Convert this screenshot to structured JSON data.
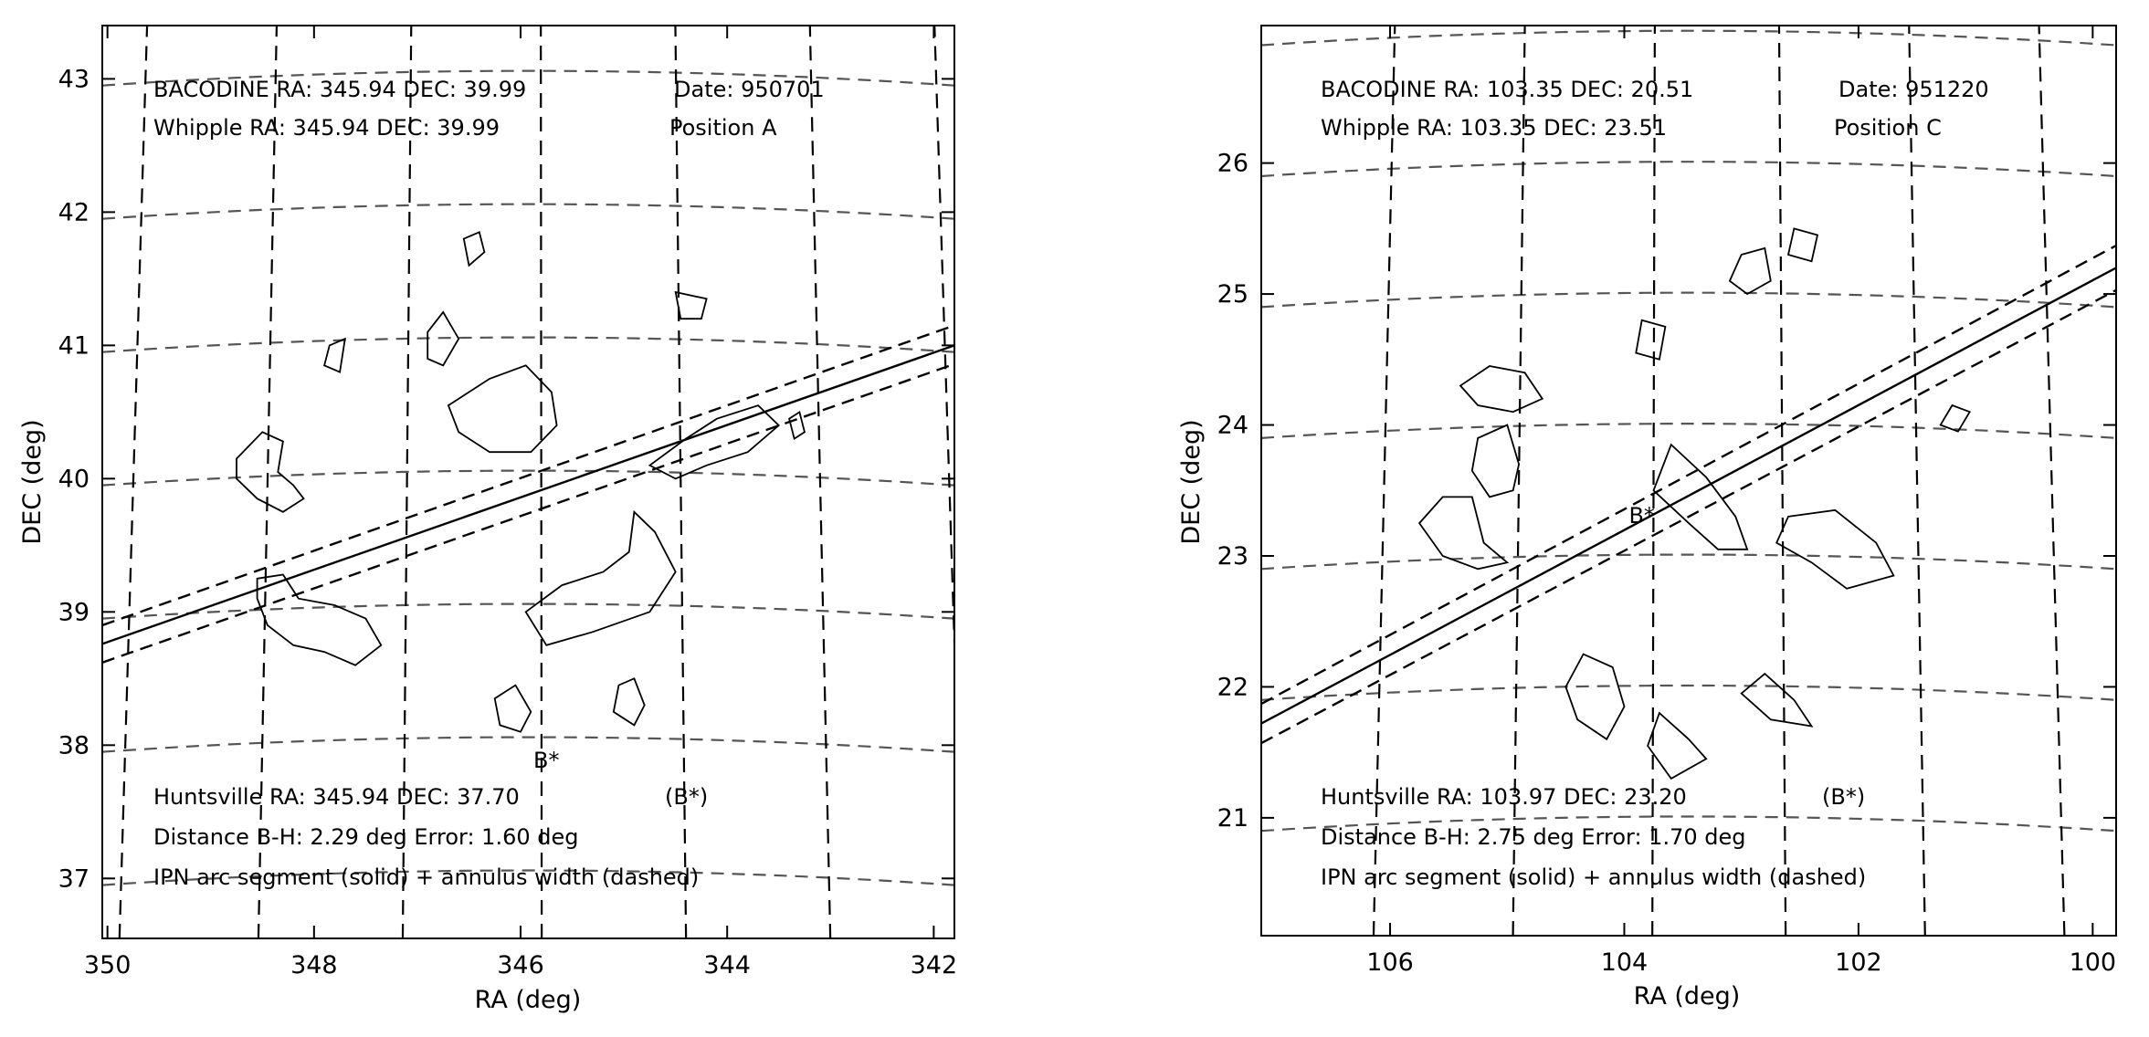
{
  "chart_data": [
    {
      "type": "contour",
      "xlabel": "RA (deg)",
      "ylabel": "DEC (deg)",
      "x_reversed": true,
      "xlim": [
        350.05,
        341.8
      ],
      "ylim": [
        36.55,
        43.4
      ],
      "xticks": [
        350,
        348,
        346,
        344,
        342
      ],
      "yticks": [
        37,
        38,
        39,
        40,
        41,
        42,
        43
      ],
      "grid": "curved dashed RA/DEC coordinate grid",
      "grid_ra": [
        349.75,
        348.45,
        347.1,
        345.8,
        344.45,
        343.1,
        341.85
      ],
      "grid_dec": [
        37.0,
        38.0,
        39.0,
        40.0,
        41.0,
        42.0,
        43.0
      ],
      "annotations": {
        "top_line_1": "BACODINE RA: 345.94 DEC: 39.99",
        "top_date": "Date: 950701",
        "top_line_2": "Whipple RA: 345.94 DEC: 39.99",
        "top_position": "Position A",
        "bottom_line_1": "Huntsville RA: 345.94 DEC: 37.70",
        "bottom_marker_legend": "(B*)",
        "bottom_line_2": "Distance B-H: 2.29 deg Error: 1.60 deg",
        "bottom_line_3": "IPN arc segment (solid) + annulus width (dashed)"
      },
      "marker": {
        "label": "B*",
        "ra": 345.75,
        "dec": 37.83
      },
      "ipn_arc": {
        "solid": [
          [
            350.05,
            38.76
          ],
          [
            341.8,
            41.0
          ]
        ],
        "dashed_upper": [
          [
            350.05,
            38.9
          ],
          [
            341.8,
            41.15
          ]
        ],
        "dashed_lower": [
          [
            350.05,
            38.62
          ],
          [
            341.8,
            40.86
          ]
        ]
      },
      "contours": [
        [
          [
            348.75,
            40.15
          ],
          [
            348.5,
            40.35
          ],
          [
            348.3,
            40.28
          ],
          [
            348.35,
            40.05
          ],
          [
            348.2,
            39.95
          ],
          [
            348.1,
            39.85
          ],
          [
            348.3,
            39.75
          ],
          [
            348.55,
            39.85
          ],
          [
            348.75,
            40.0
          ]
        ],
        [
          [
            348.55,
            39.25
          ],
          [
            348.3,
            39.28
          ],
          [
            348.15,
            39.1
          ],
          [
            347.8,
            39.05
          ],
          [
            347.5,
            38.95
          ],
          [
            347.35,
            38.75
          ],
          [
            347.6,
            38.6
          ],
          [
            347.9,
            38.7
          ],
          [
            348.2,
            38.75
          ],
          [
            348.45,
            38.9
          ],
          [
            348.55,
            39.1
          ]
        ],
        [
          [
            346.7,
            40.55
          ],
          [
            346.3,
            40.75
          ],
          [
            345.95,
            40.85
          ],
          [
            345.7,
            40.65
          ],
          [
            345.65,
            40.4
          ],
          [
            345.9,
            40.2
          ],
          [
            346.3,
            40.2
          ],
          [
            346.6,
            40.35
          ]
        ],
        [
          [
            346.9,
            41.1
          ],
          [
            346.75,
            41.25
          ],
          [
            346.6,
            41.05
          ],
          [
            346.75,
            40.85
          ],
          [
            346.9,
            40.9
          ]
        ],
        [
          [
            346.55,
            41.8
          ],
          [
            346.4,
            41.85
          ],
          [
            346.35,
            41.7
          ],
          [
            346.5,
            41.6
          ]
        ],
        [
          [
            344.95,
            39.45
          ],
          [
            344.9,
            39.75
          ],
          [
            344.7,
            39.6
          ],
          [
            344.5,
            39.3
          ],
          [
            344.75,
            39.0
          ],
          [
            345.3,
            38.85
          ],
          [
            345.75,
            38.75
          ],
          [
            345.95,
            39.0
          ],
          [
            345.6,
            39.2
          ],
          [
            345.2,
            39.3
          ]
        ],
        [
          [
            344.9,
            38.5
          ],
          [
            344.8,
            38.3
          ],
          [
            344.9,
            38.15
          ],
          [
            345.1,
            38.25
          ],
          [
            345.05,
            38.45
          ]
        ],
        [
          [
            346.25,
            38.35
          ],
          [
            346.05,
            38.45
          ],
          [
            345.9,
            38.25
          ],
          [
            346.0,
            38.1
          ],
          [
            346.2,
            38.15
          ]
        ],
        [
          [
            344.75,
            40.1
          ],
          [
            344.4,
            40.3
          ],
          [
            344.1,
            40.45
          ],
          [
            343.7,
            40.55
          ],
          [
            343.5,
            40.4
          ],
          [
            343.8,
            40.2
          ],
          [
            344.2,
            40.1
          ],
          [
            344.5,
            40.0
          ]
        ],
        [
          [
            344.5,
            41.4
          ],
          [
            344.2,
            41.35
          ],
          [
            344.25,
            41.2
          ],
          [
            344.45,
            41.2
          ]
        ],
        [
          [
            347.85,
            41.0
          ],
          [
            347.7,
            41.05
          ],
          [
            347.75,
            40.8
          ],
          [
            347.9,
            40.85
          ]
        ],
        [
          [
            343.4,
            40.45
          ],
          [
            343.3,
            40.5
          ],
          [
            343.25,
            40.35
          ],
          [
            343.35,
            40.3
          ]
        ]
      ]
    },
    {
      "type": "contour",
      "xlabel": "RA (deg)",
      "ylabel": "DEC (deg)",
      "x_reversed": true,
      "xlim": [
        107.1,
        99.8
      ],
      "ylim": [
        20.1,
        27.05
      ],
      "xticks": [
        106,
        104,
        102,
        100
      ],
      "yticks": [
        21,
        22,
        23,
        24,
        25,
        26
      ],
      "grid": "curved dashed RA/DEC coordinate grid",
      "grid_ra": [
        106.05,
        104.9,
        103.75,
        102.65,
        101.5,
        100.35
      ],
      "grid_dec": [
        20.95,
        21.95,
        22.95,
        23.95,
        24.95,
        25.95,
        26.95
      ],
      "annotations": {
        "top_line_1": "BACODINE RA: 103.35 DEC: 20.51",
        "top_date": "Date: 951220",
        "top_line_2": "Whipple RA: 103.35 DEC: 23.51",
        "top_position": "Position C",
        "bottom_line_1": "Huntsville RA: 103.97 DEC: 23.20",
        "bottom_marker_legend": "(B*)",
        "bottom_line_2": "Distance B-H: 2.75 deg Error: 1.70 deg",
        "bottom_line_3": "IPN arc segment (solid) + annulus width (dashed)"
      },
      "marker": {
        "label": "B*",
        "ra": 103.85,
        "dec": 23.25
      },
      "ipn_arc": {
        "solid": [
          [
            107.1,
            21.72
          ],
          [
            99.8,
            25.2
          ]
        ],
        "dashed_upper": [
          [
            107.1,
            21.87
          ],
          [
            99.8,
            25.37
          ]
        ],
        "dashed_lower": [
          [
            107.1,
            21.57
          ],
          [
            99.8,
            25.03
          ]
        ]
      },
      "contours": [
        [
          [
            105.15,
            24.45
          ],
          [
            104.85,
            24.4
          ],
          [
            104.7,
            24.2
          ],
          [
            104.95,
            24.1
          ],
          [
            105.25,
            24.15
          ],
          [
            105.4,
            24.3
          ]
        ],
        [
          [
            105.0,
            24.0
          ],
          [
            104.9,
            23.7
          ],
          [
            104.95,
            23.5
          ],
          [
            105.15,
            23.45
          ],
          [
            105.3,
            23.65
          ],
          [
            105.25,
            23.9
          ]
        ],
        [
          [
            105.3,
            23.45
          ],
          [
            105.2,
            23.1
          ],
          [
            105.0,
            22.95
          ],
          [
            105.25,
            22.9
          ],
          [
            105.55,
            23.0
          ],
          [
            105.75,
            23.25
          ],
          [
            105.55,
            23.45
          ]
        ],
        [
          [
            103.6,
            23.85
          ],
          [
            103.3,
            23.6
          ],
          [
            103.05,
            23.3
          ],
          [
            102.95,
            23.05
          ],
          [
            103.2,
            23.05
          ],
          [
            103.45,
            23.25
          ],
          [
            103.75,
            23.5
          ]
        ],
        [
          [
            102.6,
            23.3
          ],
          [
            102.2,
            23.35
          ],
          [
            101.85,
            23.1
          ],
          [
            101.7,
            22.85
          ],
          [
            102.1,
            22.75
          ],
          [
            102.4,
            22.95
          ],
          [
            102.7,
            23.1
          ]
        ],
        [
          [
            104.35,
            22.25
          ],
          [
            104.1,
            22.15
          ],
          [
            104.0,
            21.85
          ],
          [
            104.15,
            21.6
          ],
          [
            104.4,
            21.75
          ],
          [
            104.5,
            22.0
          ]
        ],
        [
          [
            103.45,
            21.6
          ],
          [
            103.3,
            21.45
          ],
          [
            103.6,
            21.3
          ],
          [
            103.8,
            21.55
          ],
          [
            103.7,
            21.8
          ]
        ],
        [
          [
            102.8,
            22.1
          ],
          [
            102.55,
            21.9
          ],
          [
            102.4,
            21.7
          ],
          [
            102.75,
            21.75
          ],
          [
            103.0,
            21.95
          ]
        ],
        [
          [
            103.0,
            25.3
          ],
          [
            102.8,
            25.35
          ],
          [
            102.75,
            25.1
          ],
          [
            102.95,
            25.0
          ],
          [
            103.1,
            25.1
          ]
        ],
        [
          [
            102.55,
            25.5
          ],
          [
            102.35,
            25.45
          ],
          [
            102.4,
            25.25
          ],
          [
            102.6,
            25.3
          ]
        ],
        [
          [
            101.2,
            24.15
          ],
          [
            101.05,
            24.1
          ],
          [
            101.15,
            23.95
          ],
          [
            101.3,
            24.0
          ]
        ],
        [
          [
            103.85,
            24.8
          ],
          [
            103.65,
            24.75
          ],
          [
            103.7,
            24.5
          ],
          [
            103.9,
            24.55
          ]
        ]
      ]
    }
  ]
}
